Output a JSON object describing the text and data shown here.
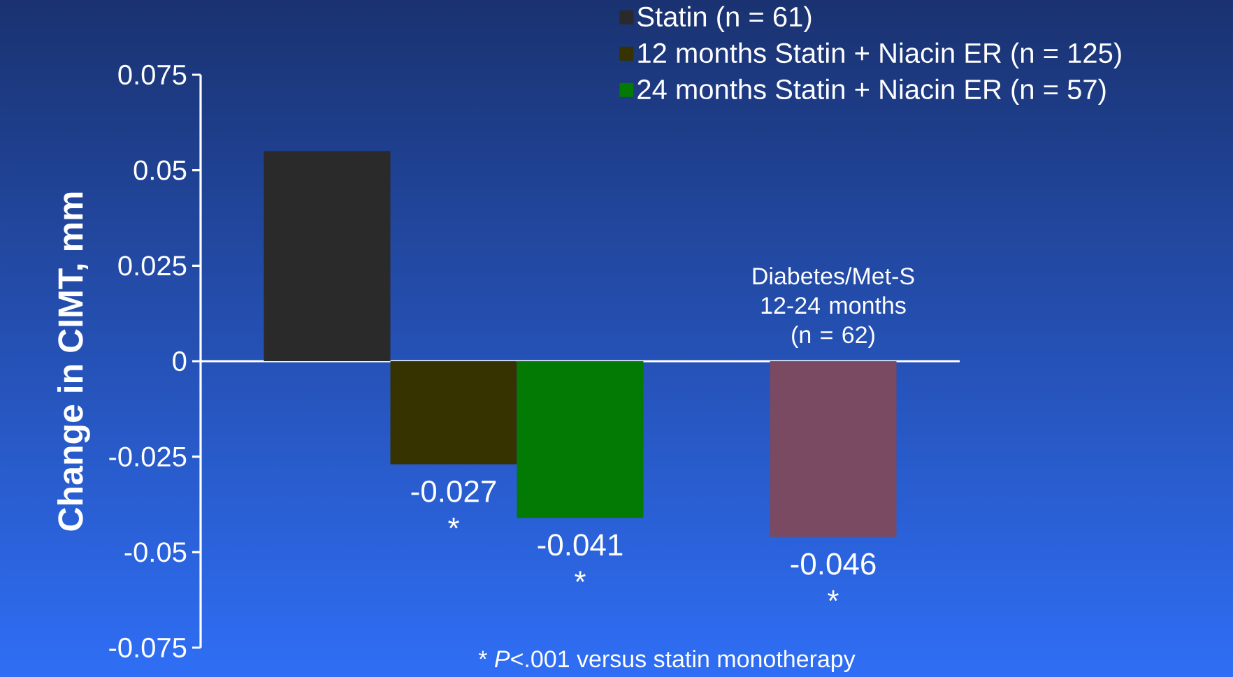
{
  "chart_data": {
    "type": "bar",
    "ylabel": "Change in CIMT,  mm",
    "categories": [
      null,
      null,
      null,
      null,
      null
    ],
    "series": [
      {
        "name": "Statin (n = 61)",
        "color": "#2a2a2a",
        "values": [
          0.055,
          null,
          null,
          null,
          null
        ]
      },
      {
        "name": "12 months Statin + Niacin ER (n = 125)",
        "color": "#363300",
        "values": [
          null,
          -0.027,
          null,
          null,
          null
        ],
        "value_labels": [
          null,
          "-0.027",
          null,
          null,
          null
        ]
      },
      {
        "name": "24 months Statin + Niacin ER (n = 57)",
        "color": "#037a03",
        "values": [
          null,
          null,
          -0.041,
          null,
          null
        ],
        "value_labels": [
          null,
          null,
          "-0.041",
          null,
          null
        ]
      },
      {
        "color": "#7a4a62",
        "values": [
          null,
          null,
          null,
          null,
          -0.046
        ],
        "value_labels": [
          null,
          null,
          null,
          null,
          "-0.046"
        ]
      }
    ],
    "annotations": [
      "Diabetes/Met-S 12-24 months (n = 62)",
      "*",
      "*",
      "*",
      "* *P*<.001 versus statin monotherapy"
    ],
    "ylim": [
      -0.075,
      0.075
    ],
    "yticks": [
      -0.075,
      -0.05,
      -0.025,
      0,
      0.025,
      0.05,
      0.075
    ],
    "legend": "top right"
  }
}
